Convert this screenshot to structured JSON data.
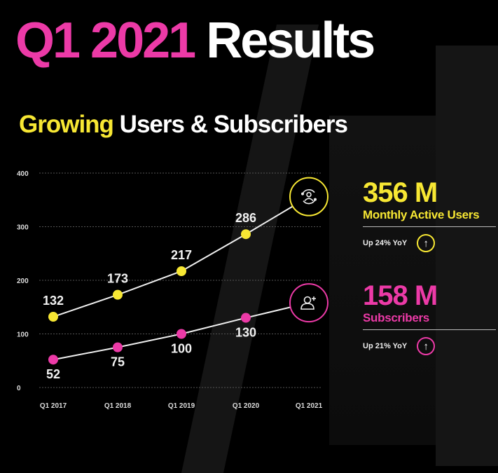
{
  "header": {
    "title_highlight": "Q1 2021",
    "title_rest": "Results",
    "subtitle_highlight": "Growing",
    "subtitle_rest": "Users & Subscribers"
  },
  "colors": {
    "pink": "#ec3aa7",
    "yellow": "#f7e733",
    "background": "#000000"
  },
  "stats": {
    "mau": {
      "value": "356 M",
      "label": "Monthly Active Users",
      "yoy": "Up 24% YoY",
      "icon": "arrow-up-icon"
    },
    "subs": {
      "value": "158 M",
      "label": "Subscribers",
      "yoy": "Up 21% YoY",
      "icon": "arrow-up-icon"
    }
  },
  "chart_data": {
    "type": "line",
    "title": "Growing Users & Subscribers",
    "xlabel": "",
    "ylabel": "",
    "categories": [
      "Q1 2017",
      "Q1 2018",
      "Q1 2019",
      "Q1 2020",
      "Q1 2021"
    ],
    "ylim": [
      0,
      400
    ],
    "yticks": [
      0,
      100,
      200,
      300,
      400
    ],
    "grid": true,
    "series": [
      {
        "name": "Monthly Active Users",
        "color": "#f7e733",
        "values": [
          132,
          173,
          217,
          286,
          356
        ],
        "labels": [
          "132",
          "173",
          "217",
          "286",
          ""
        ],
        "end_icon": "user-refresh-icon"
      },
      {
        "name": "Subscribers",
        "color": "#ec3aa7",
        "values": [
          52,
          75,
          100,
          130,
          158
        ],
        "labels": [
          "52",
          "75",
          "100",
          "130",
          ""
        ],
        "end_icon": "user-add-icon"
      }
    ]
  }
}
